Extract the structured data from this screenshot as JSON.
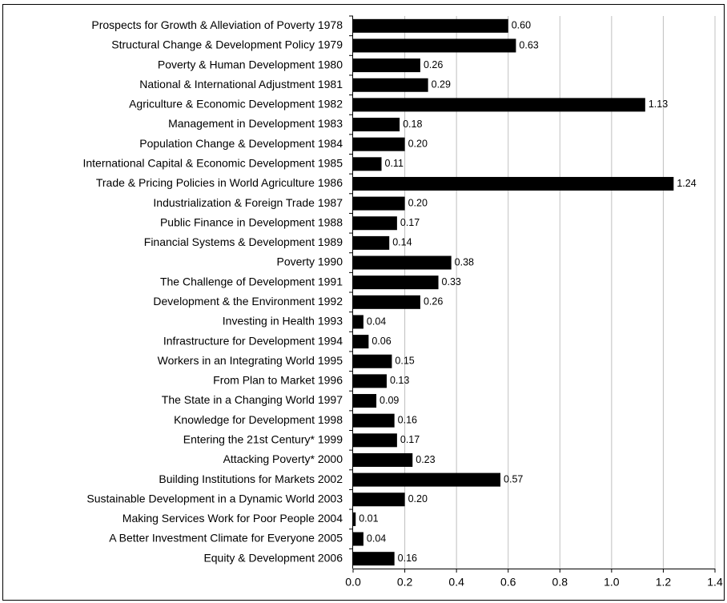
{
  "chart_data": {
    "type": "bar",
    "orientation": "horizontal",
    "color": "#000000",
    "grid": true,
    "categories": [
      "Prospects for Growth & Alleviation of Poverty 1978",
      "Structural Change & Development Policy 1979",
      "Poverty & Human Development 1980",
      "National & International Adjustment 1981",
      "Agriculture & Economic Development 1982",
      "Management in Development 1983",
      "Population Change & Development 1984",
      "International Capital & Economic Development 1985",
      "Trade & Pricing Policies in World Agriculture 1986",
      "Industrialization & Foreign Trade 1987",
      "Public Finance in Development 1988",
      "Financial Systems & Development 1989",
      "Poverty 1990",
      "The Challenge of Development 1991",
      "Development & the Environment 1992",
      "Investing in Health 1993",
      "Infrastructure for Development 1994",
      "Workers in an Integrating World 1995",
      "From Plan to Market 1996",
      "The State in a Changing World 1997",
      "Knowledge for Development 1998",
      "Entering the 21st Century* 1999",
      "Attacking Poverty* 2000",
      "Building Institutions for Markets 2002",
      "Sustainable Development in a Dynamic World 2003",
      "Making Services Work for Poor People 2004",
      "A Better Investment Climate for Everyone 2005",
      "Equity & Development 2006"
    ],
    "values": [
      0.6,
      0.63,
      0.26,
      0.29,
      1.13,
      0.18,
      0.2,
      0.11,
      1.24,
      0.2,
      0.17,
      0.14,
      0.38,
      0.33,
      0.26,
      0.04,
      0.06,
      0.15,
      0.13,
      0.09,
      0.16,
      0.17,
      0.23,
      0.57,
      0.2,
      0.01,
      0.04,
      0.16
    ],
    "value_labels": [
      "0.60",
      "0.63",
      "0.26",
      "0.29",
      "1.13",
      "0.18",
      "0.20",
      "0.11",
      "1.24",
      "0.20",
      "0.17",
      "0.14",
      "0.38",
      "0.33",
      "0.26",
      "0.04",
      "0.06",
      "0.15",
      "0.13",
      "0.09",
      "0.16",
      "0.17",
      "0.23",
      "0.57",
      "0.20",
      "0.01",
      "0.04",
      "0.16"
    ],
    "xlim": [
      0,
      1.4
    ],
    "xticks": [
      {
        "value": 0,
        "label": "0.0"
      },
      0.2,
      0.4,
      0.6,
      0.8,
      {
        "value": 1,
        "label": "1.0"
      },
      1.2,
      1.4
    ]
  }
}
